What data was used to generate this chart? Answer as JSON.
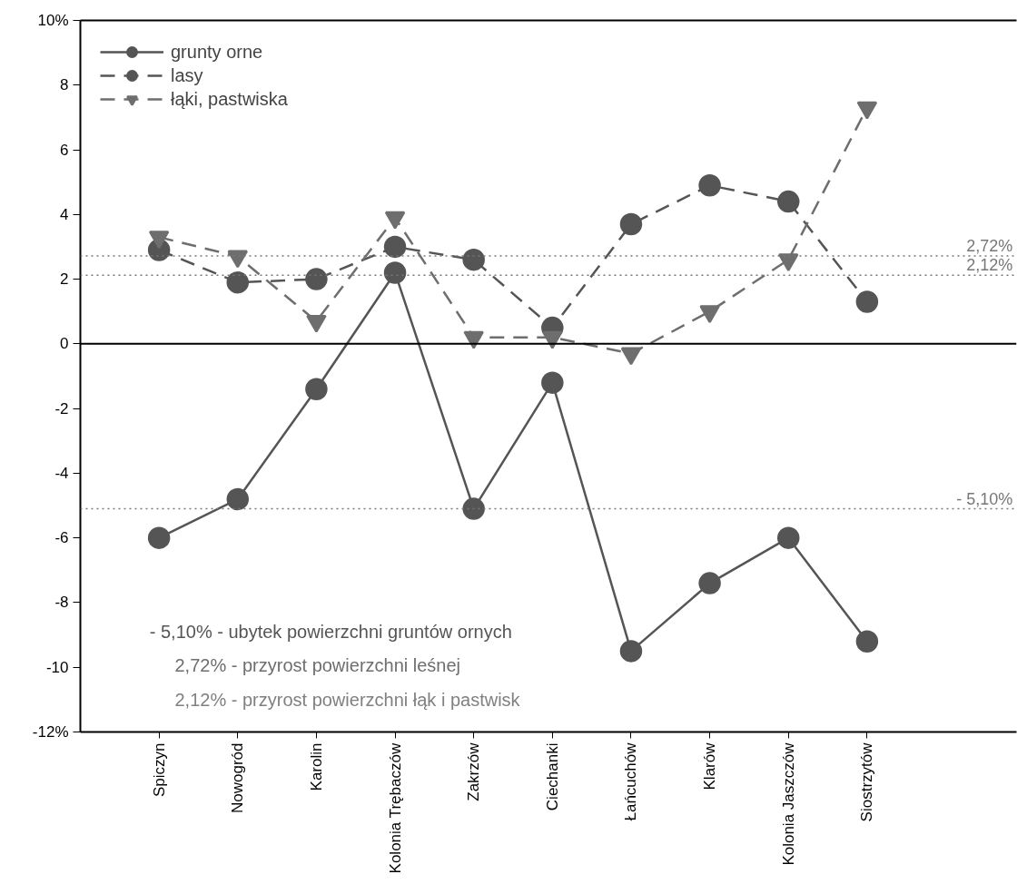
{
  "chart_data": {
    "type": "line",
    "categories": [
      "Spiczyn",
      "Nowogród",
      "Karolin",
      "Kolonia Trębaczów",
      "Zakrzów",
      "Ciechanki",
      "Łańcuchów",
      "Klarów",
      "Kolonia Jaszczów",
      "Siostrzytów"
    ],
    "series": [
      {
        "name": "grunty orne",
        "color": "#555555",
        "marker": "circle",
        "line_style": "solid",
        "values": [
          -6.0,
          -4.8,
          -1.4,
          2.2,
          -5.1,
          -1.2,
          -9.5,
          -7.4,
          -6.0,
          -9.2
        ]
      },
      {
        "name": "lasy",
        "color": "#555555",
        "marker": "circle",
        "line_style": "dashed",
        "values": [
          2.9,
          1.9,
          2.0,
          3.0,
          2.6,
          0.5,
          3.7,
          4.9,
          4.4,
          1.3
        ]
      },
      {
        "name": "łąki, pastwiska",
        "color": "#6e6e6e",
        "marker": "triangle",
        "line_style": "dashed",
        "values": [
          3.3,
          2.7,
          0.7,
          3.9,
          0.2,
          0.2,
          -0.3,
          1.0,
          2.6,
          7.3
        ]
      }
    ],
    "ylim": [
      -12,
      10
    ],
    "yticks": [
      {
        "value": 10,
        "label": "10%"
      },
      8,
      6,
      4,
      2,
      0,
      -2,
      -4,
      -6,
      -8,
      -10,
      {
        "value": -12,
        "label": "-12%"
      }
    ],
    "ref_lines": [
      {
        "axis": "y",
        "value": 0,
        "label": null,
        "color": "#000000",
        "line_style": "solid"
      },
      {
        "axis": "y",
        "value": 2.72,
        "label": "2,72%",
        "color": "#777777",
        "line_style": "dotted"
      },
      {
        "axis": "y",
        "value": 2.12,
        "label": "2,12%",
        "color": "#777777",
        "line_style": "dotted"
      },
      {
        "axis": "y",
        "value": -5.1,
        "label": "- 5,10%",
        "color": "#777777",
        "line_style": "dotted"
      }
    ],
    "annotations": [
      "- 5,10% - ubytek powierzchni gruntów ornych",
      "2,72% - przyrost powierzchni leśnej",
      "2,12% - przyrost powierzchni łąk i pastwisk"
    ],
    "grid": false,
    "legend": "top left"
  }
}
